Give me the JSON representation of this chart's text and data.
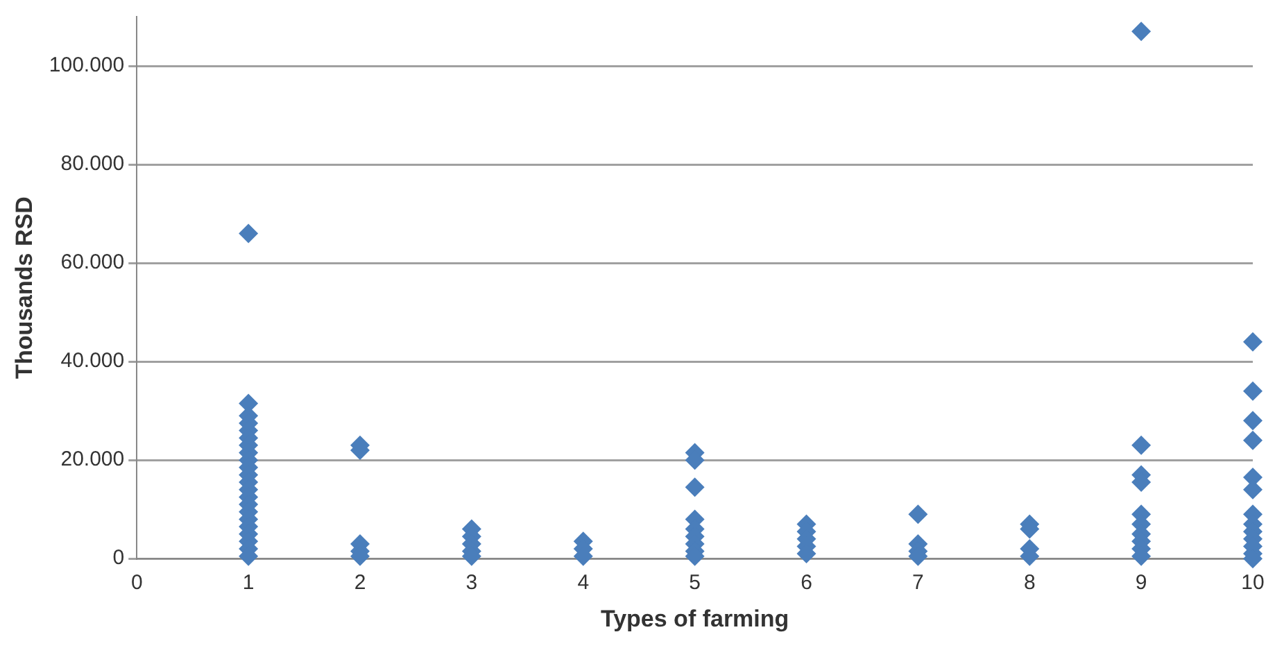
{
  "chart_data": {
    "type": "scatter",
    "xlabel": "Types of farming",
    "ylabel": "Thousands RSD",
    "series": [
      {
        "color": "#4a7ebb",
        "x": [
          1,
          1,
          1,
          1,
          1,
          1,
          1,
          1,
          1,
          1,
          1,
          1,
          1,
          1,
          1,
          1,
          1,
          1,
          1,
          1,
          1,
          1,
          2,
          2,
          2,
          2,
          2,
          3,
          3,
          3,
          3,
          3,
          4,
          4,
          4,
          5,
          5,
          5,
          5,
          5,
          5,
          5,
          5,
          5,
          6,
          6,
          6,
          6,
          6,
          7,
          7,
          7,
          7,
          8,
          8,
          8,
          8,
          9,
          9,
          9,
          9,
          9,
          9,
          9,
          9,
          9,
          9,
          10,
          10,
          10,
          10,
          10,
          10,
          10,
          10,
          10,
          10,
          10,
          10,
          10
        ],
        "values": [
          66000,
          31500,
          29000,
          27500,
          26000,
          24500,
          23000,
          21500,
          20000,
          18500,
          17000,
          15500,
          14000,
          12500,
          11000,
          9500,
          8000,
          6500,
          5000,
          3500,
          2000,
          500,
          23000,
          22000,
          3000,
          1500,
          500,
          6000,
          4500,
          3000,
          1500,
          500,
          3500,
          2000,
          500,
          21500,
          20000,
          14500,
          8000,
          6000,
          4500,
          3000,
          1500,
          500,
          7000,
          5500,
          4000,
          2500,
          1000,
          9000,
          3000,
          1500,
          500,
          7000,
          6000,
          2000,
          500,
          107000,
          23000,
          17000,
          15500,
          9000,
          7000,
          5000,
          3500,
          2000,
          500,
          44000,
          34000,
          28000,
          24000,
          16500,
          14000,
          9000,
          7000,
          5500,
          4000,
          2500,
          1000,
          0
        ]
      }
    ],
    "xlim": [
      0,
      10
    ],
    "xticks": [
      0,
      1,
      2,
      3,
      4,
      5,
      6,
      7,
      8,
      9,
      10
    ],
    "ylim": [
      0,
      110000
    ],
    "yticks": [
      {
        "value": 0,
        "label": "0"
      },
      {
        "value": 20000,
        "label": "20.000"
      },
      {
        "value": 40000,
        "label": "40.000"
      },
      {
        "value": 60000,
        "label": "60.000"
      },
      {
        "value": 80000,
        "label": "80.000"
      },
      {
        "value": 100000,
        "label": "100.000"
      }
    ],
    "grid": "y",
    "marker": "diamond",
    "legend": false
  }
}
